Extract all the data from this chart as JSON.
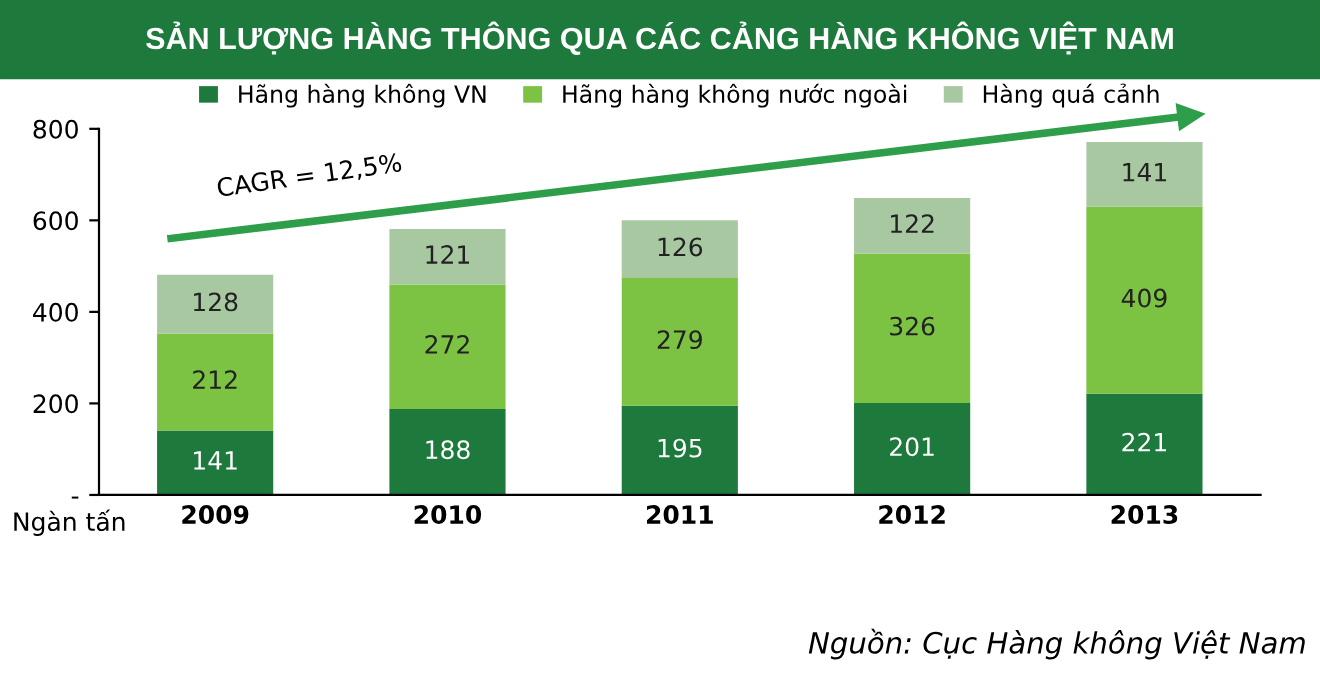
{
  "chart_data": {
    "type": "bar",
    "stacked": true,
    "title": "SẢN LƯỢNG HÀNG THÔNG QUA CÁC CẢNG HÀNG KHÔNG VIỆT NAM",
    "categories": [
      "2009",
      "2010",
      "2011",
      "2012",
      "2013"
    ],
    "series": [
      {
        "name": "Hãng hàng không VN",
        "color": "#1e7a3c",
        "values": [
          141,
          188,
          195,
          201,
          221
        ]
      },
      {
        "name": "Hãng hàng không nước ngoài",
        "color": "#7cc243",
        "values": [
          212,
          272,
          279,
          326,
          409
        ]
      },
      {
        "name": "Hàng quá cảnh",
        "color": "#a8c8a2",
        "values": [
          128,
          121,
          126,
          122,
          141
        ]
      }
    ],
    "ylabel": "Ngàn tấn",
    "ylim": [
      0,
      800
    ],
    "yticks": [
      {
        "value": 0,
        "label": "-"
      },
      200,
      400,
      600,
      800
    ],
    "data_labels": true,
    "legend": "top",
    "grid": false,
    "annotations": [
      "CAGR = 12,5%",
      "Nguồn: Cục Hàng không Việt Nam"
    ]
  }
}
